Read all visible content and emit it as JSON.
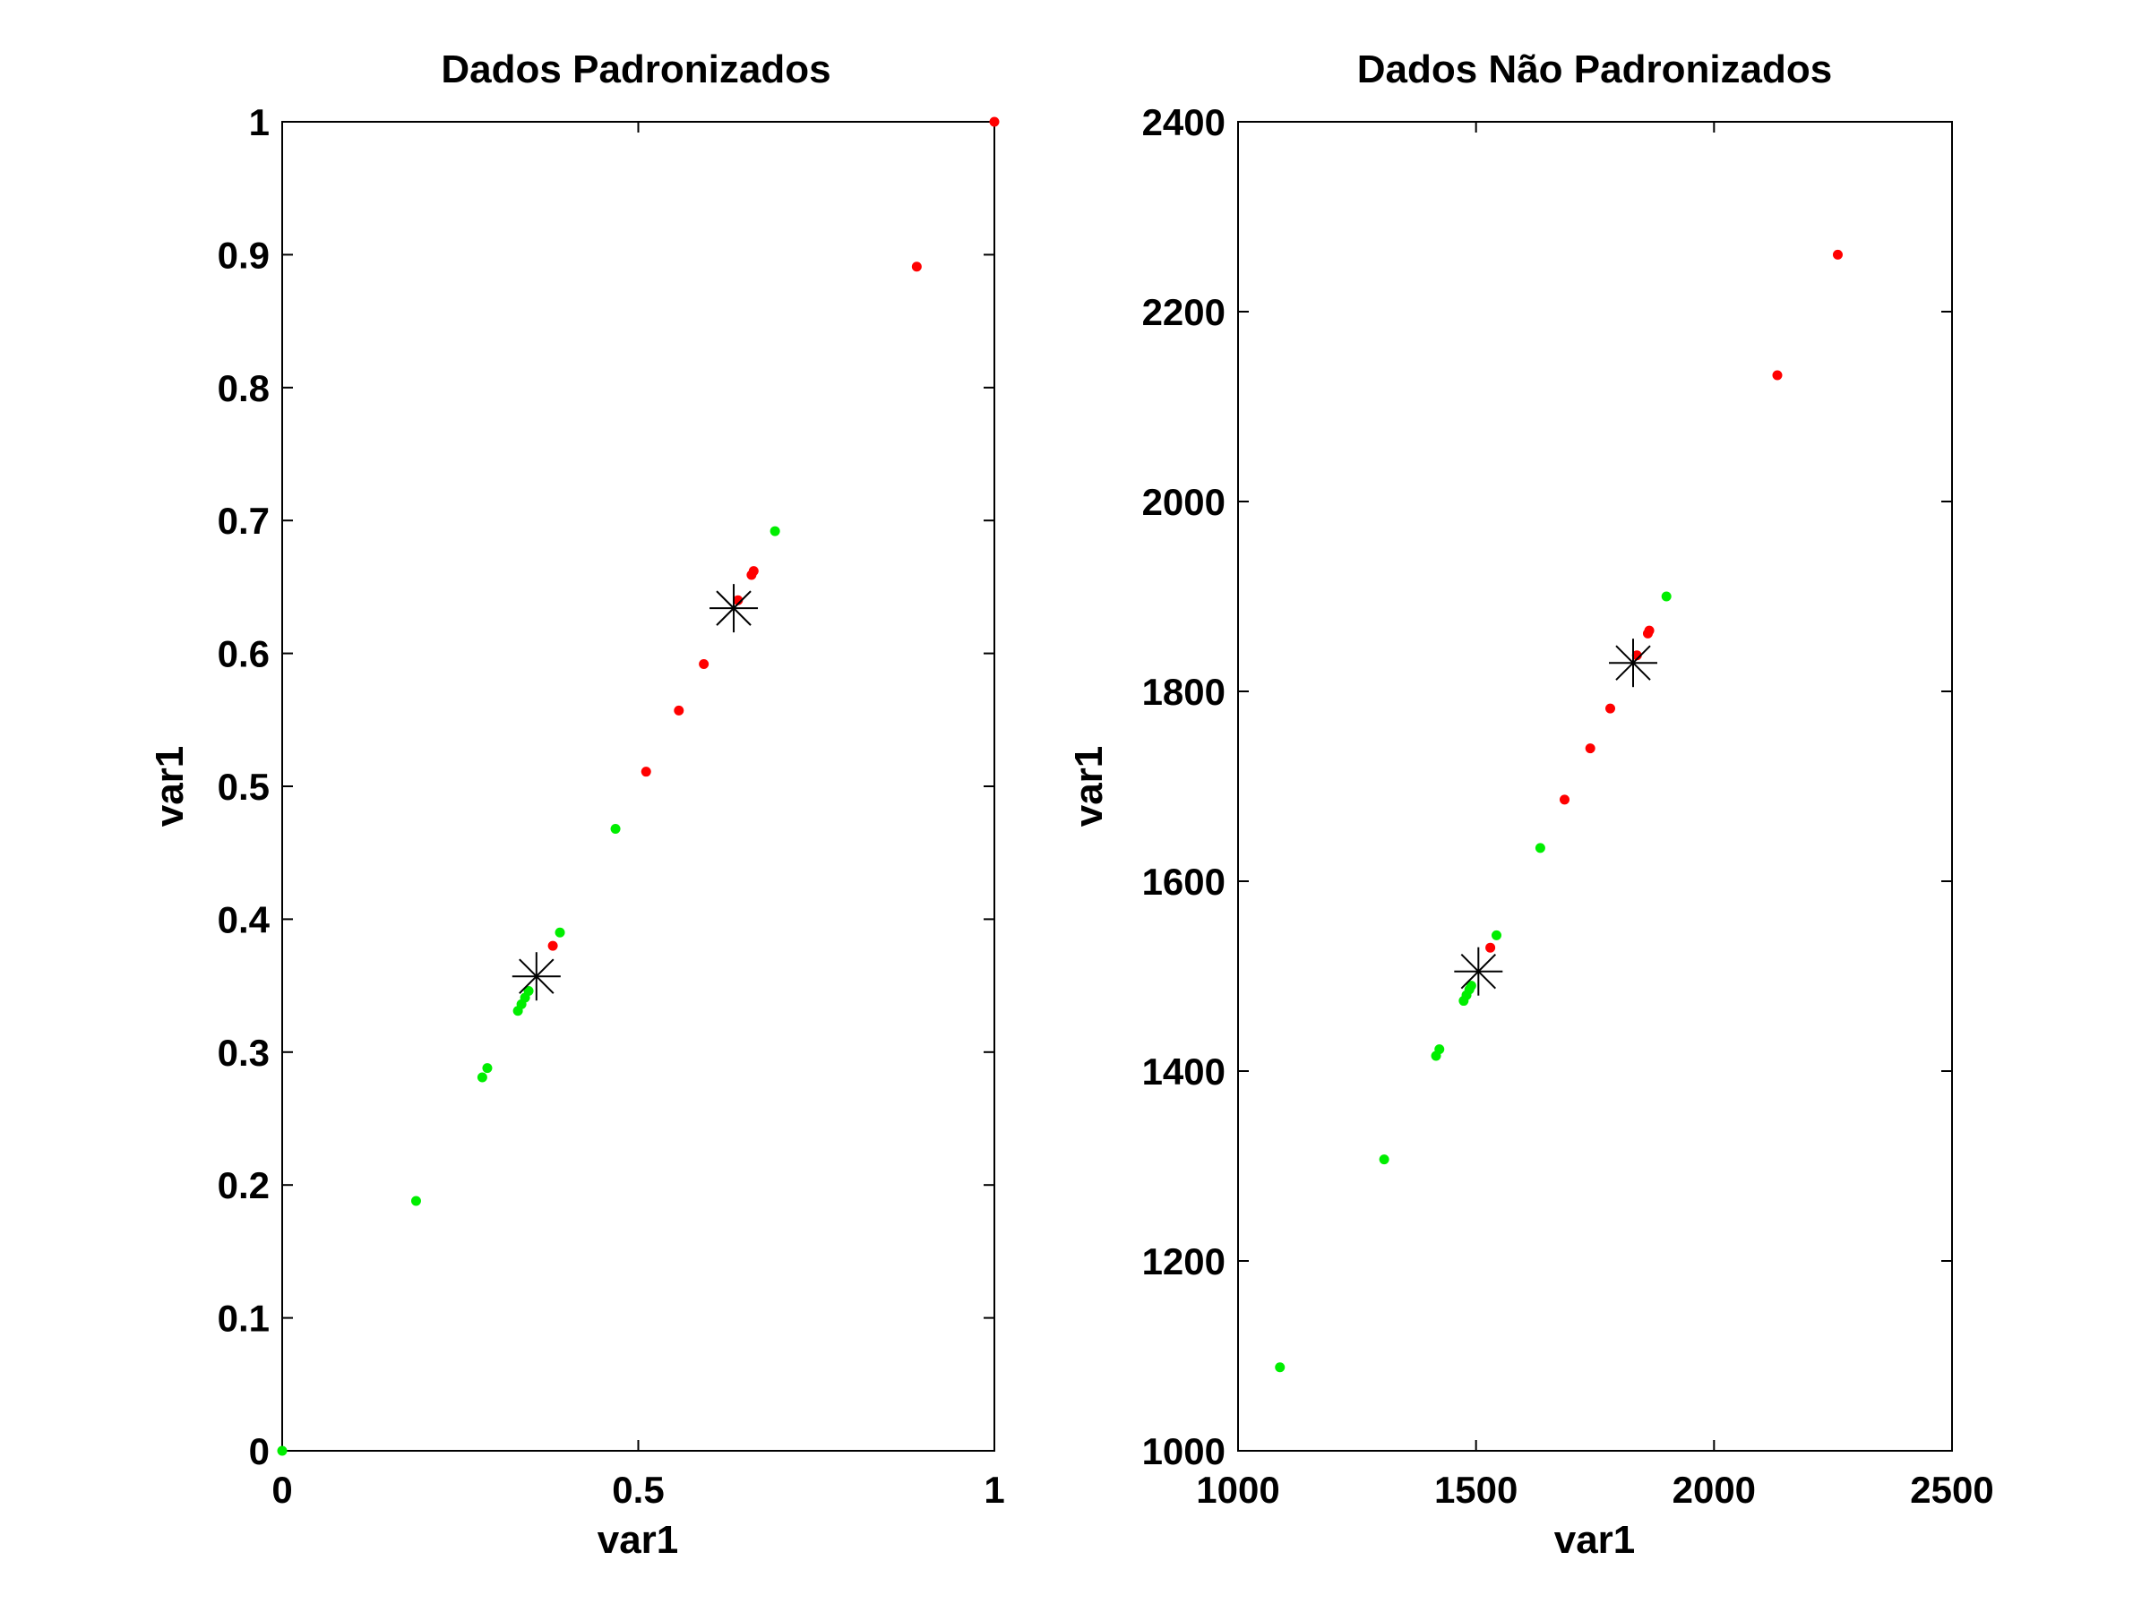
{
  "chart_data": [
    {
      "type": "scatter",
      "title": "Dados Padronizados",
      "xlabel": "var1",
      "ylabel": "var1",
      "xlim": [
        0,
        1
      ],
      "ylim": [
        0,
        1
      ],
      "x_ticks": [
        0,
        0.5,
        1
      ],
      "x_tick_labels": [
        "0",
        "0.5",
        "1"
      ],
      "y_ticks": [
        0,
        0.1,
        0.2,
        0.3,
        0.4,
        0.5,
        0.6,
        0.7,
        0.8,
        0.9,
        1
      ],
      "y_tick_labels": [
        "0",
        "0.1",
        "0.2",
        "0.3",
        "0.4",
        "0.5",
        "0.6",
        "0.7",
        "0.8",
        "0.9",
        "1"
      ],
      "grid": false,
      "series": [
        {
          "color": "#00ee00",
          "marker": "dot",
          "points": [
            [
              0.0,
              0.0
            ],
            [
              0.188,
              0.188
            ],
            [
              0.281,
              0.281
            ],
            [
              0.288,
              0.288
            ],
            [
              0.331,
              0.331
            ],
            [
              0.336,
              0.336
            ],
            [
              0.341,
              0.341
            ],
            [
              0.346,
              0.346
            ],
            [
              0.39,
              0.39
            ],
            [
              0.468,
              0.468
            ],
            [
              0.692,
              0.692
            ]
          ]
        },
        {
          "color": "#ff0000",
          "marker": "dot",
          "points": [
            [
              0.38,
              0.38
            ],
            [
              0.511,
              0.511
            ],
            [
              0.557,
              0.557
            ],
            [
              0.592,
              0.592
            ],
            [
              0.64,
              0.64
            ],
            [
              0.659,
              0.659
            ],
            [
              0.662,
              0.662
            ],
            [
              0.891,
              0.891
            ],
            [
              1.0,
              1.0
            ]
          ]
        },
        {
          "color": "#000000",
          "marker": "star",
          "points": [
            [
              0.357,
              0.357
            ],
            [
              0.634,
              0.634
            ]
          ]
        }
      ]
    },
    {
      "type": "scatter",
      "title": "Dados Não Padronizados",
      "xlabel": "var1",
      "ylabel": "var1",
      "xlim": [
        1000,
        2500
      ],
      "ylim": [
        1000,
        2400
      ],
      "x_ticks": [
        1000,
        1500,
        2000,
        2500
      ],
      "x_tick_labels": [
        "1000",
        "1500",
        "2000",
        "2500"
      ],
      "y_ticks": [
        1000,
        1200,
        1400,
        1600,
        1800,
        2000,
        2200,
        2400
      ],
      "y_tick_labels": [
        "1000",
        "1200",
        "1400",
        "1600",
        "1800",
        "2000",
        "2200",
        "2400"
      ],
      "grid": false,
      "series": [
        {
          "color": "#00ee00",
          "marker": "dot",
          "points": [
            [
              1088,
              1088
            ],
            [
              1307,
              1307
            ],
            [
              1416,
              1416
            ],
            [
              1423,
              1423
            ],
            [
              1474,
              1474
            ],
            [
              1480,
              1480
            ],
            [
              1486,
              1486
            ],
            [
              1490,
              1490
            ],
            [
              1543,
              1543
            ],
            [
              1635,
              1635
            ],
            [
              1900,
              1900
            ]
          ]
        },
        {
          "color": "#ff0000",
          "marker": "dot",
          "points": [
            [
              1530,
              1530
            ],
            [
              1686,
              1686
            ],
            [
              1740,
              1740
            ],
            [
              1782,
              1782
            ],
            [
              1838,
              1838
            ],
            [
              1861,
              1861
            ],
            [
              1864,
              1864
            ],
            [
              2133,
              2133
            ],
            [
              2260,
              2260
            ]
          ]
        },
        {
          "color": "#000000",
          "marker": "star",
          "points": [
            [
              1505,
              1505
            ],
            [
              1830,
              1830
            ]
          ]
        }
      ]
    }
  ]
}
